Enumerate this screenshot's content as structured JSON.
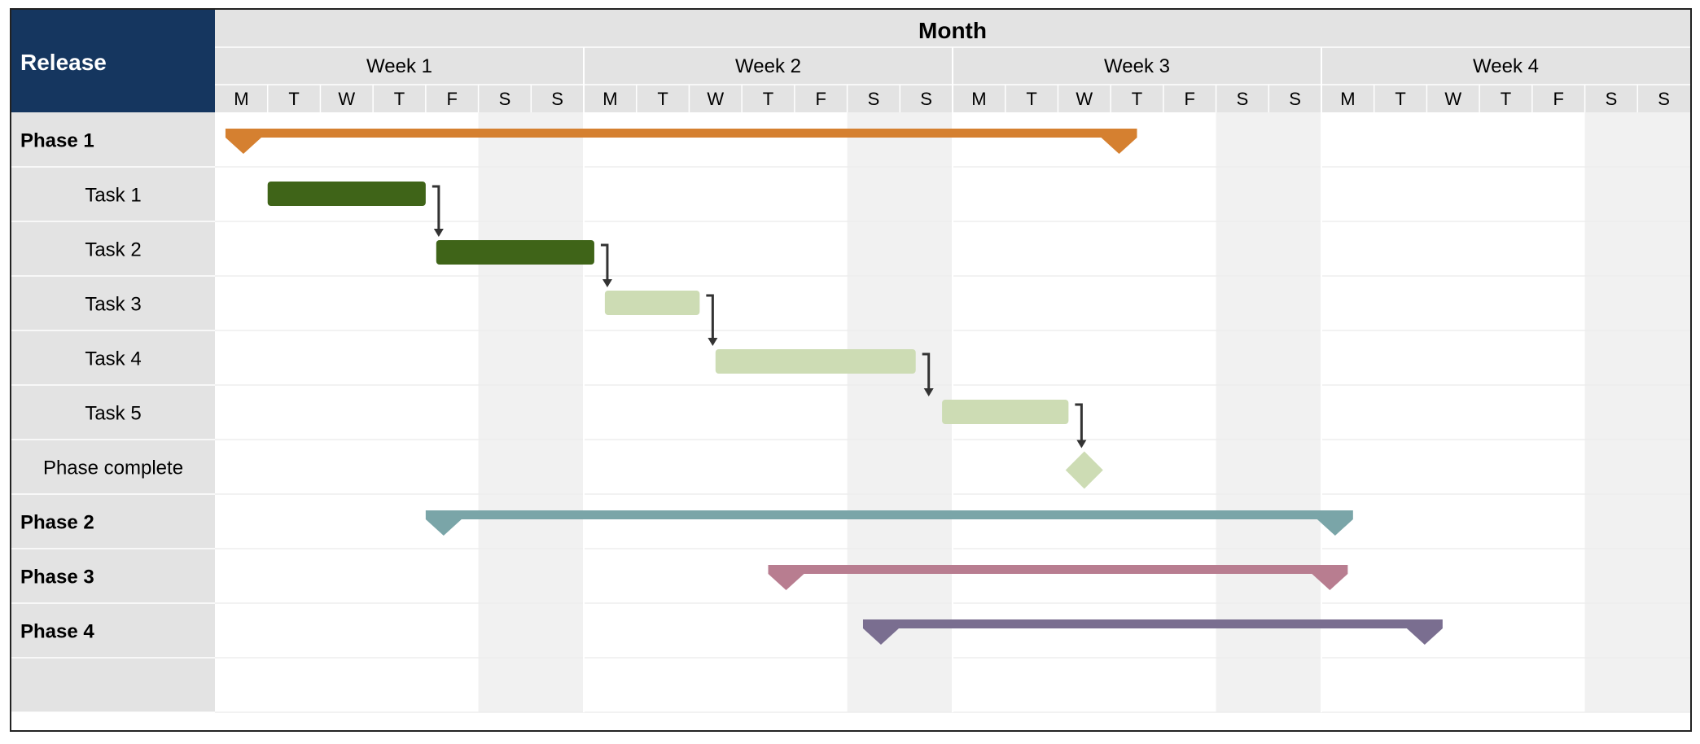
{
  "chart_data": {
    "type": "gantt",
    "title": "Month",
    "corner_label": "Release",
    "weeks": [
      "Week 1",
      "Week 2",
      "Week 3",
      "Week 4"
    ],
    "day_labels": [
      "M",
      "T",
      "W",
      "T",
      "F",
      "S",
      "S"
    ],
    "rows": [
      {
        "label": "Phase 1",
        "bold": true,
        "indent": false,
        "kind": "phase",
        "start": 0.2,
        "end": 17.5,
        "color": "#d58030"
      },
      {
        "label": "Task 1",
        "bold": false,
        "indent": true,
        "kind": "task",
        "start": 1.0,
        "end": 4.0,
        "color": "#3f6418"
      },
      {
        "label": "Task 2",
        "bold": false,
        "indent": true,
        "kind": "task",
        "start": 4.2,
        "end": 7.2,
        "color": "#3f6418"
      },
      {
        "label": "Task 3",
        "bold": false,
        "indent": true,
        "kind": "task",
        "start": 7.4,
        "end": 9.2,
        "color": "#cddcb4"
      },
      {
        "label": "Task 4",
        "bold": false,
        "indent": true,
        "kind": "task",
        "start": 9.5,
        "end": 13.3,
        "color": "#cddcb4"
      },
      {
        "label": "Task 5",
        "bold": false,
        "indent": true,
        "kind": "task",
        "start": 13.8,
        "end": 16.2,
        "color": "#cddcb4"
      },
      {
        "label": "Phase complete",
        "bold": false,
        "indent": true,
        "kind": "milestone",
        "at": 16.5,
        "color": "#cddcb4"
      },
      {
        "label": "Phase 2",
        "bold": true,
        "indent": false,
        "kind": "phase",
        "start": 4.0,
        "end": 21.6,
        "color": "#7aa5a8"
      },
      {
        "label": "Phase 3",
        "bold": true,
        "indent": false,
        "kind": "phase",
        "start": 10.5,
        "end": 21.5,
        "color": "#b87d90"
      },
      {
        "label": "Phase 4",
        "bold": true,
        "indent": false,
        "kind": "phase",
        "start": 12.3,
        "end": 23.3,
        "color": "#7a6e90"
      },
      {
        "label": "",
        "bold": false,
        "indent": false,
        "kind": "empty"
      }
    ],
    "dependencies": [
      {
        "from": 1,
        "to": 2
      },
      {
        "from": 2,
        "to": 3
      },
      {
        "from": 3,
        "to": 4
      },
      {
        "from": 4,
        "to": 5
      },
      {
        "from": 5,
        "to": 6
      }
    ],
    "colors": {
      "corner_bg": "#15365f",
      "header_bg": "#e3e3e3",
      "label_col_bg": "#e3e3e3",
      "weekend_shade": "#f1f1f1",
      "grid_line": "#ffffff",
      "row_line": "#eeeeee",
      "arrow": "#333333"
    }
  }
}
